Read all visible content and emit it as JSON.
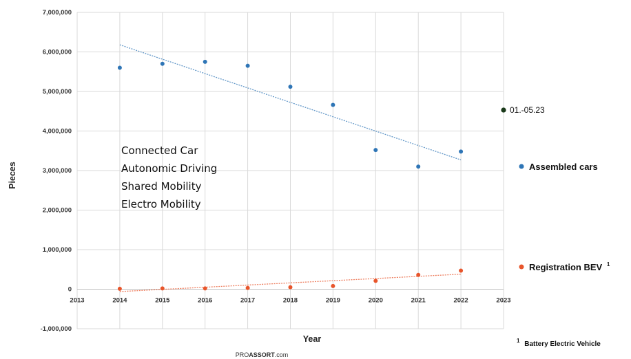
{
  "chart_data": {
    "type": "scatter",
    "xlabel": "Year",
    "ylabel": "Pieces",
    "xlim": [
      2013,
      2023
    ],
    "ylim": [
      -1000000,
      7000000
    ],
    "x_ticks": [
      "2013",
      "2014",
      "2015",
      "2016",
      "2017",
      "2018",
      "2019",
      "2020",
      "2021",
      "2022",
      "2023"
    ],
    "y_ticks": [
      "7,000,000",
      "6,000,000",
      "5,000,000",
      "4,000,000",
      "3,000,000",
      "2,000,000",
      "1,000,000",
      "0",
      "-1,000,000"
    ],
    "grid": true,
    "series": [
      {
        "name": "Assembled cars",
        "color": "#2E75B6",
        "x": [
          2014,
          2015,
          2016,
          2017,
          2018,
          2019,
          2020,
          2021,
          2022
        ],
        "values": [
          5600000,
          5700000,
          5750000,
          5650000,
          5120000,
          4660000,
          3520000,
          3100000,
          3480000
        ],
        "trendline": {
          "from": [
            2014,
            6180000
          ],
          "to": [
            2022,
            3270000
          ]
        }
      },
      {
        "name": "Registration BEV",
        "color": "#E8552B",
        "x": [
          2014,
          2015,
          2016,
          2017,
          2018,
          2019,
          2020,
          2021,
          2022
        ],
        "values": [
          10000,
          20000,
          20000,
          30000,
          50000,
          80000,
          210000,
          360000,
          470000
        ],
        "trendline": {
          "from": [
            2014,
            -60000
          ],
          "to": [
            2022,
            380000
          ]
        }
      }
    ],
    "partial_point": {
      "label": "01.-05.23",
      "x": 2023,
      "value": 4530000,
      "color": "#1a3a1a"
    },
    "annotation_lines": [
      "Connected Car",
      "Autonomic Driving",
      "Shared Mobility",
      "Electro Mobility"
    ],
    "legend": [
      {
        "label": "Assembled cars",
        "color": "#2E75B6",
        "sup": ""
      },
      {
        "label": "Registration BEV",
        "color": "#E8552B",
        "sup": "1"
      }
    ],
    "legend_position": "right",
    "footnote": {
      "sup": "1",
      "text": "Battery Electric Vehicle"
    },
    "source": {
      "prefix": "PRO",
      "brand": "ASSORT",
      "suffix": ".com"
    }
  }
}
